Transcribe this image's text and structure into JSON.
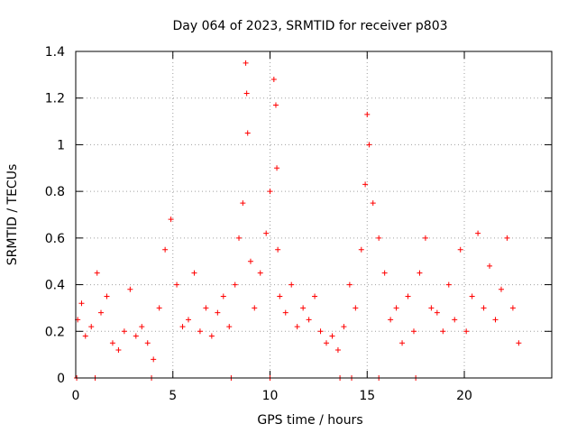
{
  "chart_data": {
    "type": "scatter",
    "title": "Day 064 of 2023, SRMTID for receiver p803",
    "xlabel": "GPS time / hours",
    "ylabel": "SRMTID / TECUs",
    "xlim": [
      0,
      24.5
    ],
    "ylim": [
      0,
      1.4
    ],
    "xticks": [
      0,
      5,
      10,
      15,
      20
    ],
    "xtick_labels": [
      "0",
      "5",
      "10",
      "15",
      "20"
    ],
    "yticks": [
      0,
      0.2,
      0.4,
      0.6,
      0.8,
      1,
      1.2,
      1.4
    ],
    "ytick_labels": [
      "0",
      "0.2",
      "0.4",
      "0.6",
      "0.8",
      "1",
      "1.2",
      "1.4"
    ],
    "grid": true,
    "marker": "+",
    "marker_color": "#ff0000",
    "series": [
      {
        "name": "SRMTID p803",
        "x": [
          0.1,
          0.3,
          0.5,
          0.8,
          1.1,
          1.3,
          1.6,
          1.9,
          2.2,
          2.5,
          2.8,
          3.1,
          3.4,
          3.7,
          4.0,
          4.3,
          4.6,
          4.9,
          5.2,
          5.5,
          5.8,
          6.1,
          6.4,
          6.7,
          7.0,
          7.3,
          7.6,
          7.9,
          8.2,
          8.4,
          8.6,
          8.75,
          8.8,
          8.85,
          9.0,
          9.2,
          9.5,
          9.8,
          10.0,
          10.2,
          10.3,
          10.35,
          10.4,
          10.5,
          10.8,
          11.1,
          11.4,
          11.7,
          12.0,
          12.3,
          12.6,
          12.9,
          13.2,
          13.5,
          13.8,
          14.1,
          14.4,
          14.7,
          14.9,
          15.0,
          15.1,
          15.3,
          15.6,
          15.9,
          16.2,
          16.5,
          16.8,
          17.1,
          17.4,
          17.7,
          18.0,
          18.3,
          18.6,
          18.9,
          19.2,
          19.5,
          19.8,
          20.1,
          20.4,
          20.7,
          21.0,
          21.3,
          21.6,
          21.9,
          22.2,
          22.5,
          22.8,
          0.05,
          1.0,
          3.9,
          8.0,
          10.0,
          13.6,
          14.2,
          15.6,
          17.5
        ],
        "y": [
          0.25,
          0.32,
          0.18,
          0.22,
          0.45,
          0.28,
          0.35,
          0.15,
          0.12,
          0.2,
          0.38,
          0.18,
          0.22,
          0.15,
          0.08,
          0.3,
          0.55,
          0.68,
          0.4,
          0.22,
          0.25,
          0.45,
          0.2,
          0.3,
          0.18,
          0.28,
          0.35,
          0.22,
          0.4,
          0.6,
          0.75,
          1.35,
          1.22,
          1.05,
          0.5,
          0.3,
          0.45,
          0.62,
          0.8,
          1.28,
          1.17,
          0.9,
          0.55,
          0.35,
          0.28,
          0.4,
          0.22,
          0.3,
          0.25,
          0.35,
          0.2,
          0.15,
          0.18,
          0.12,
          0.22,
          0.4,
          0.3,
          0.55,
          0.83,
          1.13,
          1.0,
          0.75,
          0.6,
          0.45,
          0.25,
          0.3,
          0.15,
          0.35,
          0.2,
          0.45,
          0.6,
          0.3,
          0.28,
          0.2,
          0.4,
          0.25,
          0.55,
          0.2,
          0.35,
          0.62,
          0.3,
          0.48,
          0.25,
          0.38,
          0.6,
          0.3,
          0.15,
          0.0,
          0.0,
          0.0,
          0.0,
          0.0,
          0.0,
          0.0,
          0.0,
          0.0
        ]
      }
    ]
  }
}
